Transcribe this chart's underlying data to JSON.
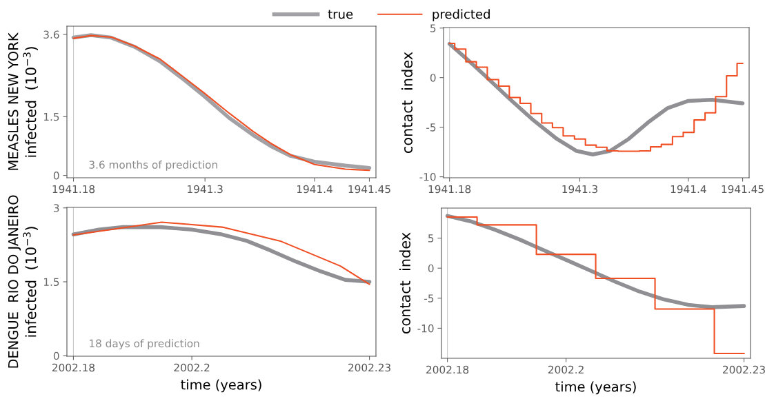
{
  "chart_data": [
    {
      "type": "line",
      "title": "MEASLES NEW YORK",
      "ylabel": "infected  (10$^{−3}$)",
      "legend": "top",
      "annotations": [
        "3.6 months of prediction"
      ],
      "xlim": [
        1941.174,
        1941.456
      ],
      "xticks": [
        1941.18,
        1941.3,
        1941.4,
        1941.45
      ],
      "ylim": [
        -0.06,
        3.81
      ],
      "yticks": [
        0,
        1.5,
        3.6
      ],
      "ref_lines": [
        {
          "axis": "x",
          "value": 1941.18,
          "color": "#c8c8c8"
        }
      ],
      "series": [
        {
          "name": "true",
          "color": "#a2a2a6",
          "x": [
            1941.18,
            1941.196,
            1941.214,
            1941.236,
            1941.259,
            1941.281,
            1941.299,
            1941.322,
            1941.344,
            1941.36,
            1941.378,
            1941.4,
            1941.428,
            1941.45
          ],
          "values": [
            3.52,
            3.58,
            3.52,
            3.28,
            2.91,
            2.44,
            2.03,
            1.47,
            1.03,
            0.75,
            0.5,
            0.35,
            0.25,
            0.19
          ]
        },
        {
          "name": "predicted",
          "color": "#f04e23",
          "x": [
            1941.18,
            1941.196,
            1941.215,
            1941.236,
            1941.259,
            1941.281,
            1941.299,
            1941.322,
            1941.344,
            1941.36,
            1941.378,
            1941.4,
            1941.428,
            1941.45
          ],
          "values": [
            3.5,
            3.57,
            3.53,
            3.3,
            2.97,
            2.5,
            2.11,
            1.59,
            1.12,
            0.82,
            0.53,
            0.28,
            0.16,
            0.13
          ]
        }
      ]
    },
    {
      "type": "line",
      "ylabel": "contact  index",
      "xlim": [
        1941.1745,
        1941.456
      ],
      "xticks": [
        1941.18,
        1941.3,
        1941.4,
        1941.45
      ],
      "ylim": [
        -10.1,
        5.05
      ],
      "yticks": [
        -10,
        -5,
        0,
        5
      ],
      "ref_lines": [
        {
          "axis": "x",
          "value": 1941.18,
          "color": "#c8c8c8"
        }
      ],
      "series": [
        {
          "color": "#909094",
          "x": [
            1941.18,
            1941.195,
            1941.213,
            1941.235,
            1941.257,
            1941.279,
            1941.297,
            1941.312,
            1941.328,
            1941.345,
            1941.363,
            1941.381,
            1941.4,
            1941.422,
            1941.45
          ],
          "values": [
            3.4,
            1.97,
            0.17,
            -2.11,
            -4.27,
            -6.19,
            -7.39,
            -7.75,
            -7.39,
            -6.19,
            -4.51,
            -3.07,
            -2.35,
            -2.23,
            -2.59
          ]
        },
        {
          "type": "step",
          "color": "#f04e23",
          "x": [
            1941.18,
            1941.1848,
            1941.195,
            1941.2047,
            1941.2148,
            1941.2252,
            1941.2351,
            1941.245,
            1941.2549,
            1941.2649,
            1941.2748,
            1941.2847,
            1941.2951,
            1941.3052,
            1941.3151,
            1941.325,
            1941.3354,
            1941.3453,
            1941.3552,
            1941.3652,
            1941.3751,
            1941.3854,
            1941.3953,
            1941.4053,
            1941.4154,
            1941.4251,
            1941.4352,
            1941.4449,
            1941.45
          ],
          "values": [
            3.45,
            2.88,
            1.6,
            1.05,
            -0.2,
            -0.86,
            -2.0,
            -2.6,
            -3.62,
            -4.58,
            -5.04,
            -5.88,
            -6.19,
            -6.81,
            -7.03,
            -7.39,
            -7.43,
            -7.43,
            -7.39,
            -6.98,
            -6.74,
            -5.95,
            -5.52,
            -4.27,
            -3.55,
            -1.92,
            0.19,
            1.44,
            1.44
          ]
        }
      ]
    },
    {
      "type": "line",
      "title": "DENGUE  RIO DO JANEIRO",
      "ylabel": "infected  (10$^{−3}$)",
      "xlabel": "time (years)",
      "annotations": [
        "18 days of prediction"
      ],
      "xlim": [
        2002.1789,
        2002.2311
      ],
      "xticks": [
        2002.18,
        2002.2,
        2002.23
      ],
      "ylim": [
        -0.01,
        3.01
      ],
      "yticks": [
        0,
        1.5,
        3
      ],
      "ref_lines": [
        {
          "axis": "x",
          "value": 2002.18,
          "color": "#c8c8c8"
        }
      ],
      "series": [
        {
          "color": "#909094",
          "x": [
            2002.18,
            2002.1843,
            2002.1884,
            2002.1947,
            2002.2,
            2002.2051,
            2002.2093,
            2002.2134,
            2002.2176,
            2002.2218,
            2002.2259,
            2002.23
          ],
          "values": [
            2.46,
            2.56,
            2.61,
            2.61,
            2.56,
            2.46,
            2.33,
            2.13,
            1.91,
            1.71,
            1.54,
            1.5
          ]
        },
        {
          "color": "#f04e23",
          "x": [
            2002.18,
            2002.1949,
            2002.2051,
            2002.2151,
            2002.2251,
            2002.23
          ],
          "values": [
            2.45,
            2.71,
            2.61,
            2.32,
            1.82,
            1.45
          ]
        }
      ]
    },
    {
      "type": "line",
      "ylabel": "contact  index",
      "xlabel": "time (years)",
      "xlim": [
        2002.179,
        2002.2311
      ],
      "xticks": [
        2002.18,
        2002.2,
        2002.23
      ],
      "ylim": [
        -15,
        10
      ],
      "yticks": [
        -10,
        -5,
        0,
        5
      ],
      "ref_lines": [
        {
          "axis": "x",
          "value": 2002.18,
          "color": "#c8c8c8"
        }
      ],
      "series": [
        {
          "color": "#909094",
          "x": [
            2002.18,
            2002.1839,
            2002.188,
            2002.1921,
            2002.1962,
            2002.2002,
            2002.2043,
            2002.2084,
            2002.2124,
            2002.2165,
            2002.2206,
            2002.2246,
            2002.23
          ],
          "values": [
            8.7,
            7.8,
            6.4,
            4.8,
            3.0,
            1.3,
            -0.5,
            -2.3,
            -3.9,
            -5.2,
            -6.1,
            -6.5,
            -6.3
          ]
        },
        {
          "type": "step",
          "color": "#f04e23",
          "x": [
            2002.18,
            2002.185,
            2002.195,
            2002.205,
            2002.215,
            2002.225,
            2002.23
          ],
          "values": [
            8.5,
            7.2,
            2.3,
            -1.7,
            -6.8,
            -14.2,
            -14.2
          ]
        }
      ]
    }
  ]
}
